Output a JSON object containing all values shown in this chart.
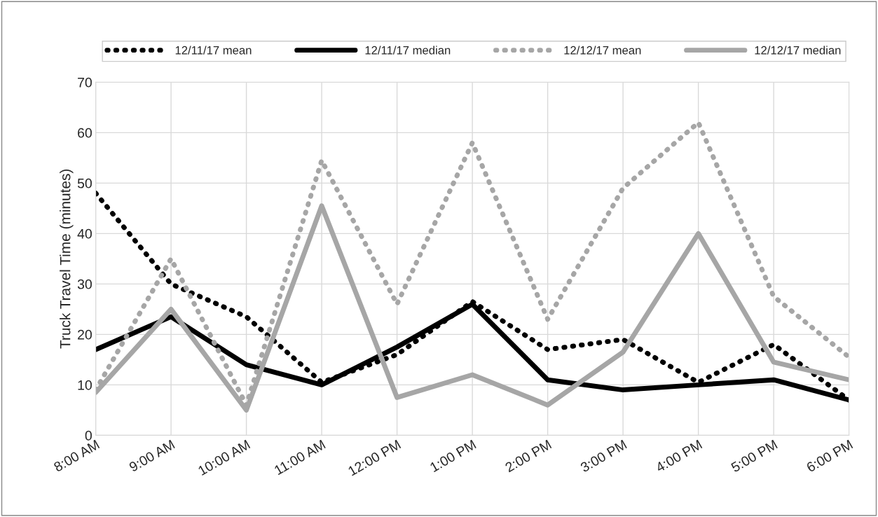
{
  "chart_data": {
    "type": "line",
    "ylabel": "Truck Travel Time (minutes)",
    "categories": [
      "8:00 AM",
      "9:00 AM",
      "10:00 AM",
      "11:00 AM",
      "12:00 PM",
      "1:00 PM",
      "2:00 PM",
      "3:00 PM",
      "4:00 PM",
      "5:00 PM",
      "6:00 PM"
    ],
    "series": [
      {
        "name": "12/11/17 mean",
        "color": "#000000",
        "line_style": "dotted",
        "values": [
          48,
          30,
          23.5,
          10.5,
          16,
          26.5,
          17,
          19,
          10.5,
          18,
          7
        ]
      },
      {
        "name": "12/11/17 median",
        "color": "#000000",
        "line_style": "solid",
        "values": [
          17,
          23.5,
          14,
          10,
          17.5,
          26,
          11,
          9,
          10,
          11,
          7
        ]
      },
      {
        "name": "12/12/17 mean",
        "color": "#a6a6a6",
        "line_style": "dotted",
        "values": [
          9,
          35,
          6,
          54.5,
          26,
          58,
          23,
          49,
          62,
          27.5,
          15.5
        ]
      },
      {
        "name": "12/12/17 median",
        "color": "#a6a6a6",
        "line_style": "solid",
        "values": [
          8.5,
          25,
          5,
          45.5,
          7.5,
          12,
          6,
          16.5,
          40,
          14.5,
          11
        ]
      }
    ],
    "ylim": [
      0,
      70
    ],
    "yticks": [
      0,
      10,
      20,
      30,
      40,
      50,
      60,
      70
    ],
    "grid": true,
    "legend": "top"
  }
}
